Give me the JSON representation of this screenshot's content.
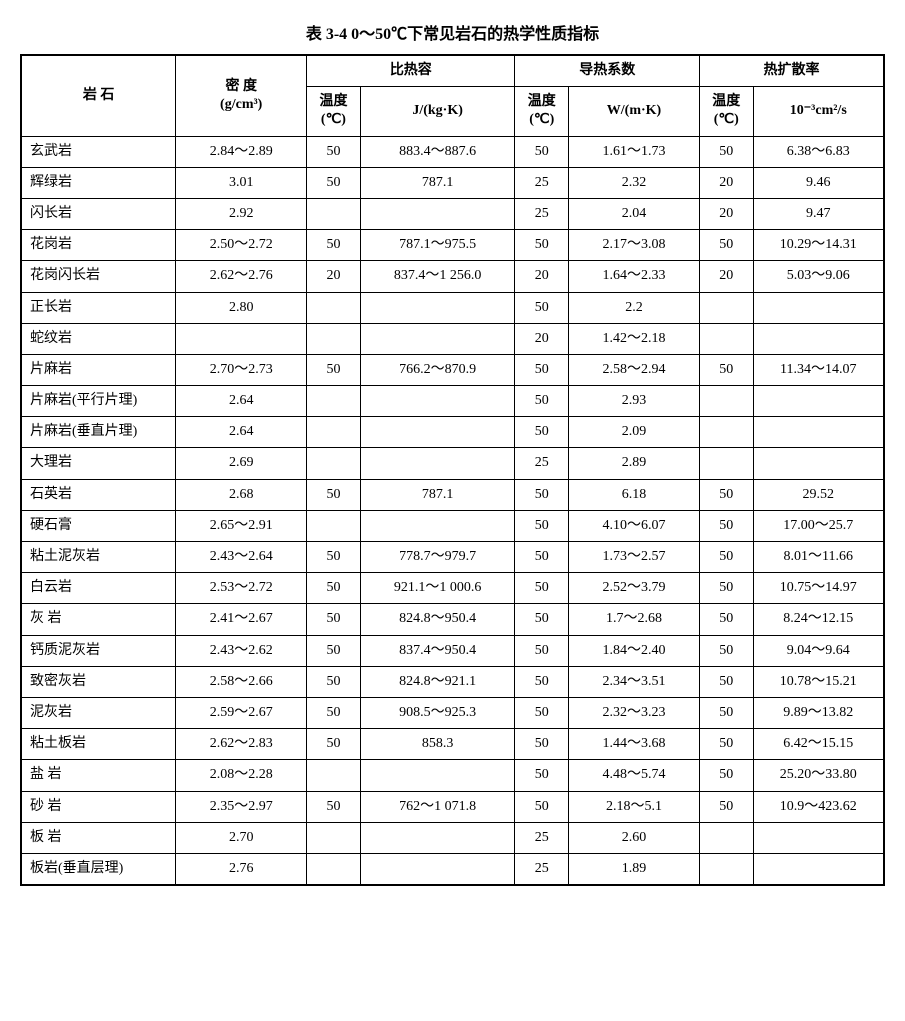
{
  "title": "表 3-4  0～50℃下常见岩石的热学性质指标",
  "headers": {
    "rock": "岩  石",
    "density": "密  度",
    "density_unit": "(g/cm³)",
    "specific_heat": "比热容",
    "thermal_conductivity": "导热系数",
    "thermal_diffusivity": "热扩散率",
    "temp_label": "温度",
    "temp_unit": "(℃)",
    "heat_unit": "J/(kg·K)",
    "cond_unit": "W/(m·K)",
    "diff_unit": "10⁻³cm²/s"
  },
  "table": {
    "columns": [
      "rock",
      "density",
      "heat_temp",
      "heat_val",
      "cond_temp",
      "cond_val",
      "diff_temp",
      "diff_val"
    ],
    "col_widths": {
      "rock": 130,
      "density": 110,
      "temp": 45,
      "heat": 130,
      "cond": 110,
      "diff": 110
    },
    "border_color": "#000000",
    "background_color": "#ffffff",
    "font_size": 14,
    "header_font_weight": "bold"
  },
  "rows": [
    {
      "rock": "玄武岩",
      "density": "2.84～2.89",
      "heat_temp": "50",
      "heat_val": "883.4～887.6",
      "cond_temp": "50",
      "cond_val": "1.61～1.73",
      "diff_temp": "50",
      "diff_val": "6.38～6.83"
    },
    {
      "rock": "辉绿岩",
      "density": "3.01",
      "heat_temp": "50",
      "heat_val": "787.1",
      "cond_temp": "25",
      "cond_val": "2.32",
      "diff_temp": "20",
      "diff_val": "9.46"
    },
    {
      "rock": "闪长岩",
      "density": "2.92",
      "heat_temp": "",
      "heat_val": "",
      "cond_temp": "25",
      "cond_val": "2.04",
      "diff_temp": "20",
      "diff_val": "9.47"
    },
    {
      "rock": "花岗岩",
      "density": "2.50～2.72",
      "heat_temp": "50",
      "heat_val": "787.1～975.5",
      "cond_temp": "50",
      "cond_val": "2.17～3.08",
      "diff_temp": "50",
      "diff_val": "10.29～14.31"
    },
    {
      "rock": "花岗闪长岩",
      "density": "2.62～2.76",
      "heat_temp": "20",
      "heat_val": "837.4～1 256.0",
      "cond_temp": "20",
      "cond_val": "1.64～2.33",
      "diff_temp": "20",
      "diff_val": "5.03～9.06"
    },
    {
      "rock": "正长岩",
      "density": "2.80",
      "heat_temp": "",
      "heat_val": "",
      "cond_temp": "50",
      "cond_val": "2.2",
      "diff_temp": "",
      "diff_val": ""
    },
    {
      "rock": "蛇纹岩",
      "density": "",
      "heat_temp": "",
      "heat_val": "",
      "cond_temp": "20",
      "cond_val": "1.42～2.18",
      "diff_temp": "",
      "diff_val": ""
    },
    {
      "rock": "片麻岩",
      "density": "2.70～2.73",
      "heat_temp": "50",
      "heat_val": "766.2～870.9",
      "cond_temp": "50",
      "cond_val": "2.58～2.94",
      "diff_temp": "50",
      "diff_val": "11.34～14.07"
    },
    {
      "rock": "片麻岩(平行片理)",
      "density": "2.64",
      "heat_temp": "",
      "heat_val": "",
      "cond_temp": "50",
      "cond_val": "2.93",
      "diff_temp": "",
      "diff_val": ""
    },
    {
      "rock": "片麻岩(垂直片理)",
      "density": "2.64",
      "heat_temp": "",
      "heat_val": "",
      "cond_temp": "50",
      "cond_val": "2.09",
      "diff_temp": "",
      "diff_val": ""
    },
    {
      "rock": "大理岩",
      "density": "2.69",
      "heat_temp": "",
      "heat_val": "",
      "cond_temp": "25",
      "cond_val": "2.89",
      "diff_temp": "",
      "diff_val": ""
    },
    {
      "rock": "石英岩",
      "density": "2.68",
      "heat_temp": "50",
      "heat_val": "787.1",
      "cond_temp": "50",
      "cond_val": "6.18",
      "diff_temp": "50",
      "diff_val": "29.52"
    },
    {
      "rock": "硬石膏",
      "density": "2.65～2.91",
      "heat_temp": "",
      "heat_val": "",
      "cond_temp": "50",
      "cond_val": "4.10～6.07",
      "diff_temp": "50",
      "diff_val": "17.00～25.7"
    },
    {
      "rock": "粘土泥灰岩",
      "density": "2.43～2.64",
      "heat_temp": "50",
      "heat_val": "778.7～979.7",
      "cond_temp": "50",
      "cond_val": "1.73～2.57",
      "diff_temp": "50",
      "diff_val": "8.01～11.66"
    },
    {
      "rock": "白云岩",
      "density": "2.53～2.72",
      "heat_temp": "50",
      "heat_val": "921.1～1 000.6",
      "cond_temp": "50",
      "cond_val": "2.52～3.79",
      "diff_temp": "50",
      "diff_val": "10.75～14.97"
    },
    {
      "rock": "灰  岩",
      "density": "2.41～2.67",
      "heat_temp": "50",
      "heat_val": "824.8～950.4",
      "cond_temp": "50",
      "cond_val": "1.7～2.68",
      "diff_temp": "50",
      "diff_val": "8.24～12.15"
    },
    {
      "rock": "钙质泥灰岩",
      "density": "2.43～2.62",
      "heat_temp": "50",
      "heat_val": "837.4～950.4",
      "cond_temp": "50",
      "cond_val": "1.84～2.40",
      "diff_temp": "50",
      "diff_val": "9.04～9.64"
    },
    {
      "rock": "致密灰岩",
      "density": "2.58～2.66",
      "heat_temp": "50",
      "heat_val": "824.8～921.1",
      "cond_temp": "50",
      "cond_val": "2.34～3.51",
      "diff_temp": "50",
      "diff_val": "10.78～15.21"
    },
    {
      "rock": "泥灰岩",
      "density": "2.59～2.67",
      "heat_temp": "50",
      "heat_val": "908.5～925.3",
      "cond_temp": "50",
      "cond_val": "2.32～3.23",
      "diff_temp": "50",
      "diff_val": "9.89～13.82"
    },
    {
      "rock": "粘土板岩",
      "density": "2.62～2.83",
      "heat_temp": "50",
      "heat_val": "858.3",
      "cond_temp": "50",
      "cond_val": "1.44～3.68",
      "diff_temp": "50",
      "diff_val": "6.42～15.15"
    },
    {
      "rock": "盐  岩",
      "density": "2.08～2.28",
      "heat_temp": "",
      "heat_val": "",
      "cond_temp": "50",
      "cond_val": "4.48～5.74",
      "diff_temp": "50",
      "diff_val": "25.20～33.80"
    },
    {
      "rock": "砂  岩",
      "density": "2.35～2.97",
      "heat_temp": "50",
      "heat_val": "762～1 071.8",
      "cond_temp": "50",
      "cond_val": "2.18～5.1",
      "diff_temp": "50",
      "diff_val": "10.9～423.62"
    },
    {
      "rock": "板  岩",
      "density": "2.70",
      "heat_temp": "",
      "heat_val": "",
      "cond_temp": "25",
      "cond_val": "2.60",
      "diff_temp": "",
      "diff_val": ""
    },
    {
      "rock": "板岩(垂直层理)",
      "density": "2.76",
      "heat_temp": "",
      "heat_val": "",
      "cond_temp": "25",
      "cond_val": "1.89",
      "diff_temp": "",
      "diff_val": ""
    }
  ]
}
